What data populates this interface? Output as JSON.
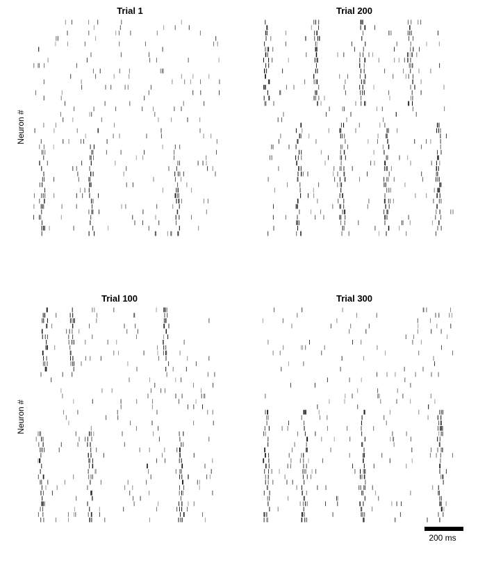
{
  "figure": {
    "panels": [
      {
        "title": "Trial 1",
        "ylabel": "Neuron #"
      },
      {
        "title": "Trial 200",
        "ylabel": ""
      },
      {
        "title": "Trial 100",
        "ylabel": "Neuron #"
      },
      {
        "title": "Trial 300",
        "ylabel": ""
      }
    ],
    "scale_bar": {
      "label": "200 ms",
      "length_ms": 200
    }
  },
  "chart_data": [
    {
      "type": "raster",
      "title": "Trial 1",
      "ylabel": "Neuron #",
      "neurons": 40,
      "xlim_ms": [
        0,
        960
      ],
      "color": "#000000",
      "assembly_neurons": [
        24,
        40
      ],
      "assembly_times_ms": [
        45,
        300,
        740
      ]
    },
    {
      "type": "raster",
      "title": "Trial 200",
      "ylabel": "",
      "neurons": 40,
      "xlim_ms": [
        0,
        960
      ],
      "color": "#000000",
      "assembly_neurons": [
        1,
        16
      ],
      "assembly_times_ms": [
        20,
        270,
        500,
        740
      ],
      "assembly2_neurons": [
        20,
        40
      ],
      "assembly2_times_ms": [
        180,
        400,
        620,
        880
      ]
    },
    {
      "type": "raster",
      "title": "Trial 100",
      "ylabel": "Neuron #",
      "neurons": 40,
      "xlim_ms": [
        0,
        960
      ],
      "color": "#000000",
      "assembly_neurons": [
        1,
        12
      ],
      "assembly_times_ms": [
        60,
        200,
        700
      ],
      "assembly2_neurons": [
        24,
        40
      ],
      "assembly2_times_ms": [
        40,
        300,
        780
      ]
    },
    {
      "type": "raster",
      "title": "Trial 300",
      "ylabel": "",
      "neurons": 40,
      "xlim_ms": [
        0,
        960
      ],
      "color": "#000000",
      "assembly_neurons": [
        20,
        40
      ],
      "assembly_times_ms": [
        20,
        210,
        500,
        890
      ]
    }
  ]
}
